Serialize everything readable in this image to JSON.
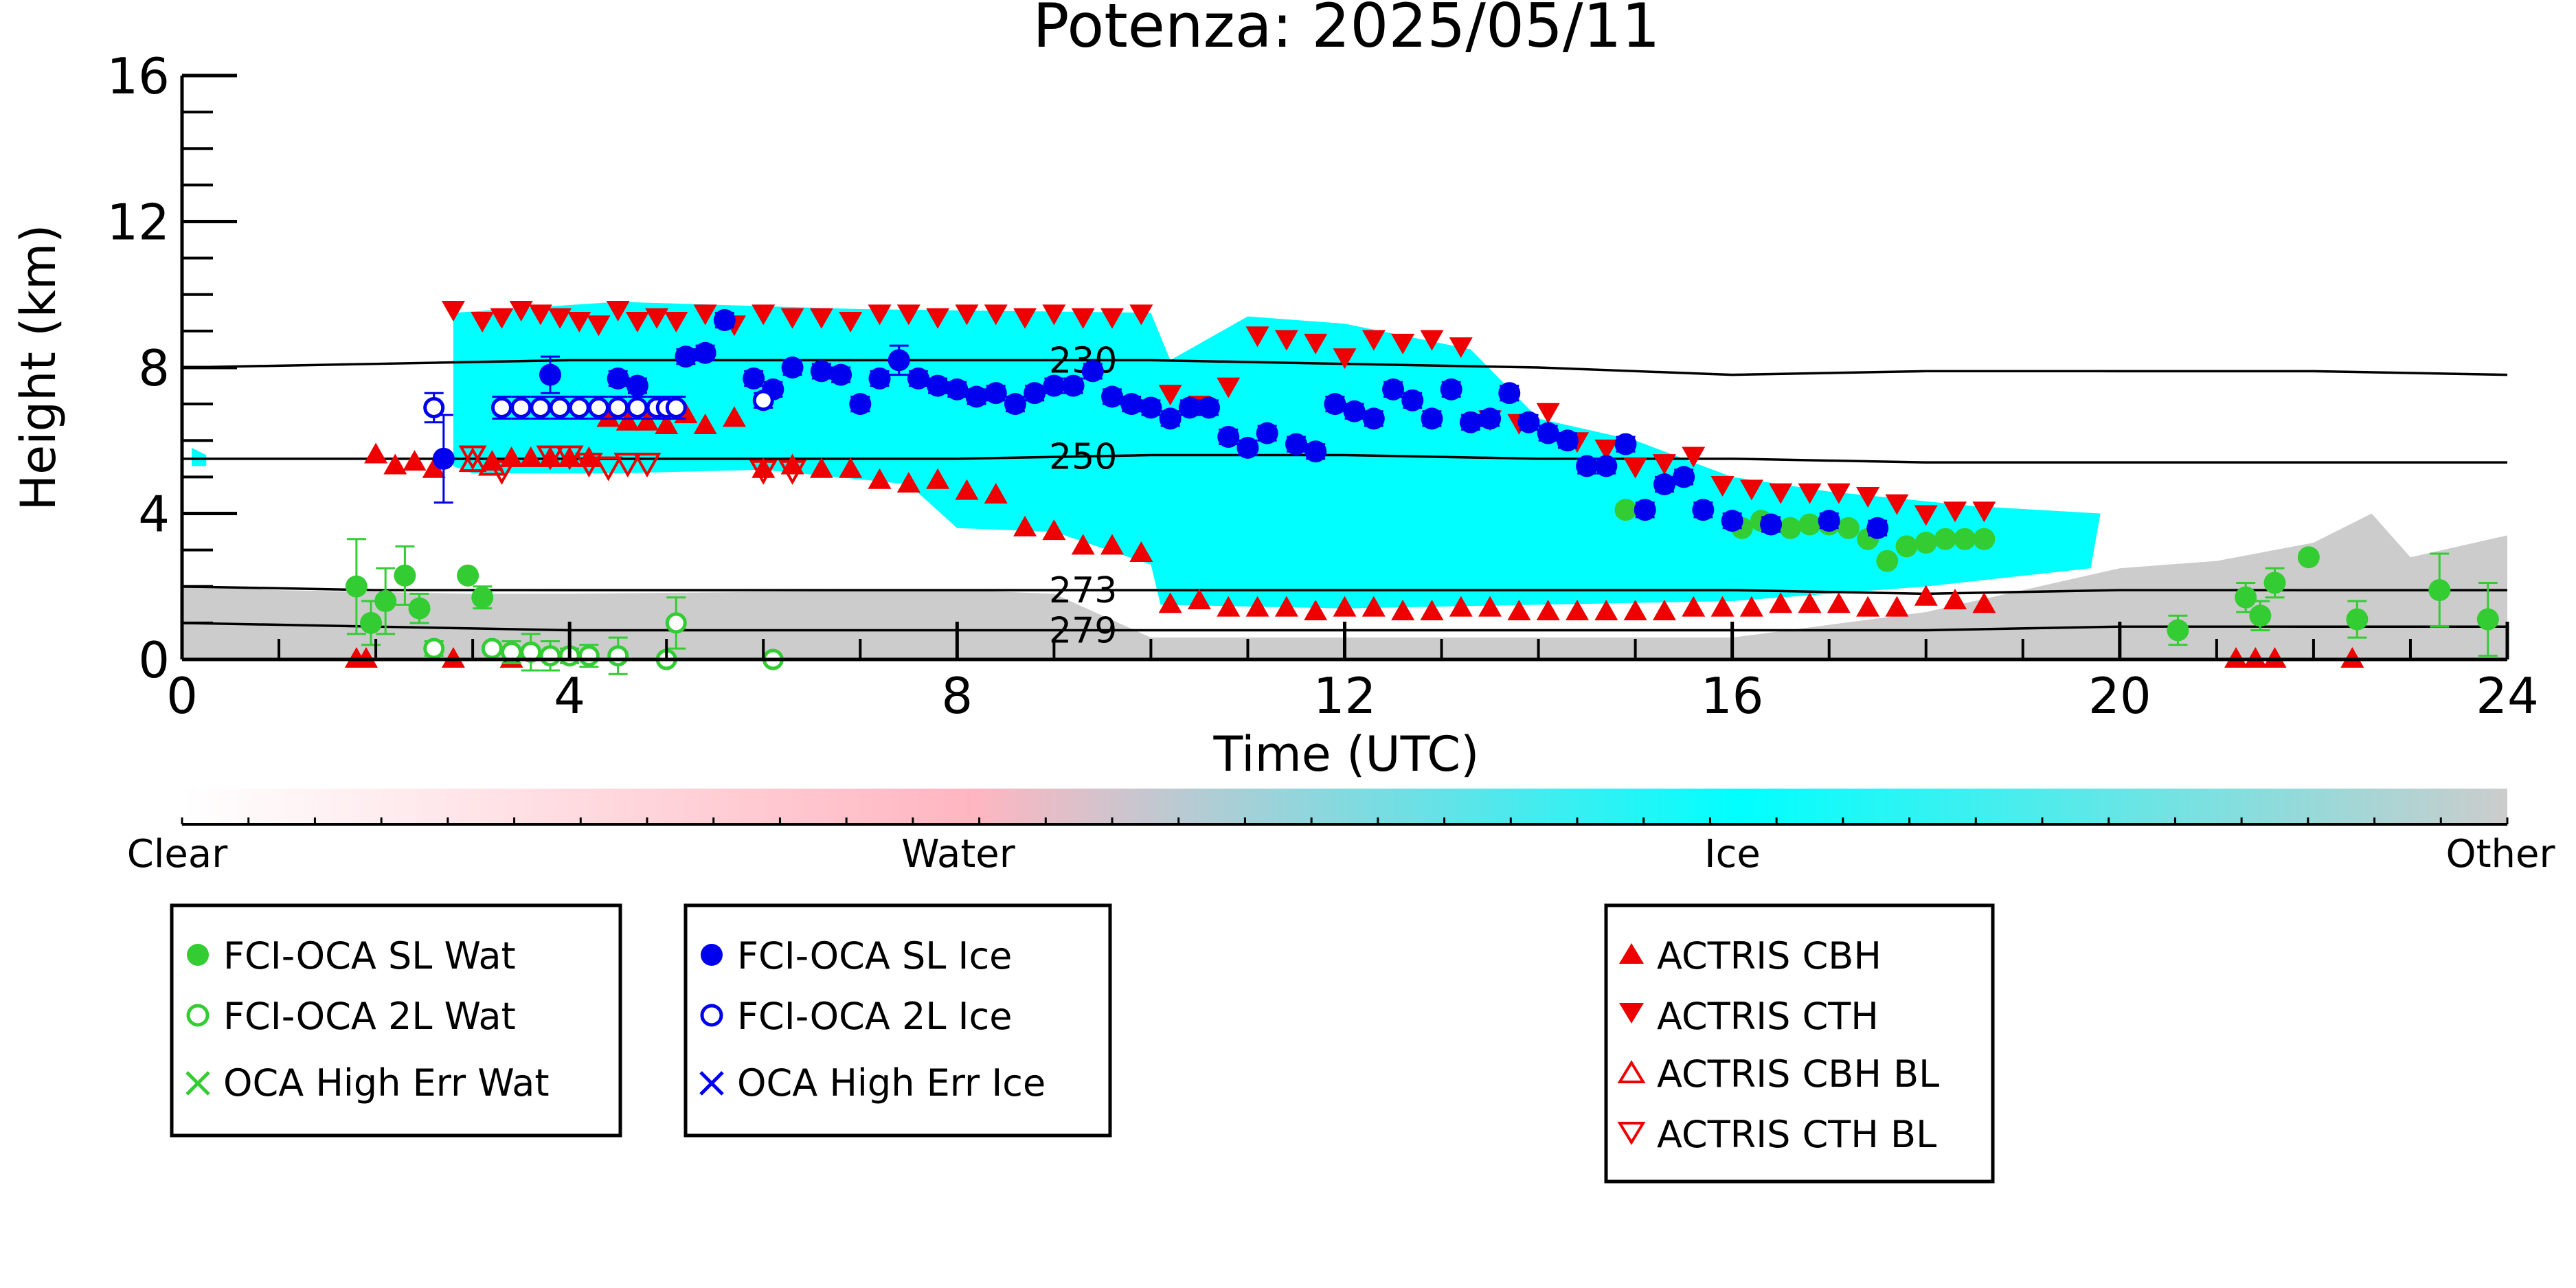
{
  "chart_data": {
    "type": "scatter",
    "title": "Potenza: 2025/05/11",
    "xlabel": "Time (UTC)",
    "ylabel": "Height (km)",
    "xlim": [
      0,
      24
    ],
    "ylim": [
      0,
      16
    ],
    "xticks": [
      0,
      4,
      8,
      12,
      16,
      20,
      24
    ],
    "yticks": [
      0,
      4,
      8,
      12,
      16
    ],
    "grid": false,
    "colors": {
      "fci_wat": "#33cc33",
      "fci_ice": "#0000ee",
      "actris": "#ee0000",
      "ice_fill": "#00ffff",
      "other_fill": "#cccccc",
      "contour": "#000000"
    },
    "colorbar": {
      "labels": [
        "Clear",
        "Water",
        "Ice",
        "Other"
      ],
      "stops": [
        "#ffffff",
        "#ffb6c1",
        "#00ffff",
        "#cccccc"
      ]
    },
    "contours": [
      {
        "label": "230",
        "label_x": 9.3,
        "points": [
          [
            0,
            8.0
          ],
          [
            2,
            8.1
          ],
          [
            4,
            8.2
          ],
          [
            6,
            8.2
          ],
          [
            8,
            8.2
          ],
          [
            10,
            8.2
          ],
          [
            12,
            8.1
          ],
          [
            14,
            8.0
          ],
          [
            15,
            7.9
          ],
          [
            16,
            7.8
          ],
          [
            18,
            7.9
          ],
          [
            20,
            7.9
          ],
          [
            22,
            7.9
          ],
          [
            24,
            7.8
          ]
        ]
      },
      {
        "label": "250",
        "label_x": 9.3,
        "points": [
          [
            0,
            5.5
          ],
          [
            2,
            5.5
          ],
          [
            4,
            5.5
          ],
          [
            6,
            5.5
          ],
          [
            8,
            5.5
          ],
          [
            10,
            5.6
          ],
          [
            12,
            5.6
          ],
          [
            14,
            5.5
          ],
          [
            16,
            5.5
          ],
          [
            18,
            5.4
          ],
          [
            20,
            5.4
          ],
          [
            22,
            5.4
          ],
          [
            24,
            5.4
          ]
        ]
      },
      {
        "label": "273",
        "label_x": 9.3,
        "points": [
          [
            0,
            2.0
          ],
          [
            2,
            1.9
          ],
          [
            4,
            1.9
          ],
          [
            6,
            1.9
          ],
          [
            8,
            1.9
          ],
          [
            10,
            1.9
          ],
          [
            12,
            1.9
          ],
          [
            14,
            1.9
          ],
          [
            16,
            1.9
          ],
          [
            18,
            1.8
          ],
          [
            20,
            1.9
          ],
          [
            22,
            1.9
          ],
          [
            24,
            1.9
          ]
        ]
      },
      {
        "label": "279",
        "label_x": 9.3,
        "points": [
          [
            0,
            1.0
          ],
          [
            2,
            0.9
          ],
          [
            4,
            0.8
          ],
          [
            6,
            0.8
          ],
          [
            8,
            0.8
          ],
          [
            10,
            0.8
          ],
          [
            12,
            0.8
          ],
          [
            14,
            0.8
          ],
          [
            16,
            0.8
          ],
          [
            18,
            0.8
          ],
          [
            20,
            0.9
          ],
          [
            22,
            0.9
          ],
          [
            24,
            0.9
          ]
        ]
      }
    ],
    "ice_region": [
      [
        0.1,
        5.8
      ],
      [
        0.25,
        5.6
      ],
      [
        0.25,
        5.3
      ],
      [
        0.1,
        5.3
      ],
      [
        0.1,
        5.8
      ]
    ],
    "ice_region_main": [
      [
        2.8,
        5.3
      ],
      [
        2.8,
        9.5
      ],
      [
        4.5,
        9.8
      ],
      [
        7,
        9.6
      ],
      [
        10,
        9.5
      ],
      [
        10.2,
        8.2
      ],
      [
        11,
        9.4
      ],
      [
        12,
        9.2
      ],
      [
        13.3,
        8.5
      ],
      [
        14,
        6.6
      ],
      [
        15,
        6.0
      ],
      [
        16,
        5.0
      ],
      [
        17,
        4.6
      ],
      [
        18.5,
        4.2
      ],
      [
        19.8,
        4.0
      ],
      [
        19.7,
        2.5
      ],
      [
        18,
        2.0
      ],
      [
        16,
        1.6
      ],
      [
        12,
        1.4
      ],
      [
        10.1,
        1.5
      ],
      [
        10,
        2.6
      ],
      [
        9,
        3.5
      ],
      [
        8,
        3.6
      ],
      [
        7.5,
        4.8
      ],
      [
        6,
        5.2
      ],
      [
        4.5,
        5.1
      ],
      [
        3,
        5.1
      ]
    ],
    "other_region": [
      [
        0,
        0
      ],
      [
        0,
        2.0
      ],
      [
        1,
        1.9
      ],
      [
        3,
        1.8
      ],
      [
        4,
        1.8
      ],
      [
        8,
        1.9
      ],
      [
        9,
        1.8
      ],
      [
        10,
        0.6
      ],
      [
        16,
        0.6
      ],
      [
        18,
        1.3
      ],
      [
        20,
        2.5
      ],
      [
        21,
        2.7
      ],
      [
        22,
        3.2
      ],
      [
        22.6,
        4.0
      ],
      [
        23,
        2.8
      ],
      [
        24,
        3.4
      ],
      [
        24,
        0
      ]
    ],
    "legend_wat": [
      "FCI-OCA SL Wat",
      "FCI-OCA 2L Wat",
      "OCA High Err Wat"
    ],
    "legend_ice": [
      "FCI-OCA SL Ice",
      "FCI-OCA 2L Ice",
      "OCA High Err Ice"
    ],
    "legend_actris": [
      "ACTRIS CBH",
      "ACTRIS CTH",
      "ACTRIS CBH BL",
      "ACTRIS CTH BL"
    ],
    "series": [
      {
        "name": "FCI-OCA SL Wat",
        "x": [
          1.8,
          1.95,
          2.1,
          2.3,
          2.45,
          2.95,
          3.1,
          14.9,
          16.1,
          16.3,
          16.6,
          16.8,
          17.0,
          17.2,
          17.4,
          17.6,
          17.8,
          18.0,
          18.2,
          18.4,
          18.6,
          20.6,
          21.3,
          21.45,
          21.6,
          21.95,
          22.45,
          23.3,
          23.8
        ],
        "y": [
          2.0,
          1.0,
          1.6,
          2.3,
          1.4,
          2.3,
          1.7,
          4.1,
          3.6,
          3.8,
          3.6,
          3.7,
          3.7,
          3.6,
          3.3,
          2.7,
          3.1,
          3.2,
          3.3,
          3.3,
          3.3,
          0.8,
          1.7,
          1.2,
          2.1,
          2.8,
          1.1,
          1.9,
          1.1
        ],
        "err": [
          1.3,
          0.6,
          0.9,
          0.8,
          0.4,
          0,
          0.3,
          0.15,
          0.1,
          0.1,
          0.1,
          0.1,
          0.1,
          0.1,
          0.1,
          0.1,
          0.1,
          0.1,
          0.1,
          0.1,
          0.1,
          0.4,
          0.4,
          0.4,
          0.4,
          0,
          0.5,
          1.0,
          1.0
        ]
      },
      {
        "name": "FCI-OCA 2L Wat",
        "x": [
          2.6,
          3.2,
          3.4,
          3.6,
          3.8,
          4.0,
          4.2,
          4.5,
          5.0,
          5.1,
          6.1
        ],
        "y": [
          0.3,
          0.3,
          0.2,
          0.2,
          0.1,
          0.1,
          0.1,
          0.1,
          0.0,
          1.0,
          0.0
        ],
        "err": [
          0.2,
          0.1,
          0.3,
          0.5,
          0.4,
          0.2,
          0.3,
          0.5,
          0.1,
          0.7,
          0.1
        ]
      },
      {
        "name": "FCI-OCA SL Ice",
        "x": [
          2.7,
          3.8,
          4.5,
          4.7,
          5.2,
          5.4,
          5.6,
          5.9,
          6.1,
          6.3,
          6.6,
          6.8,
          7.0,
          7.2,
          7.4,
          7.6,
          7.8,
          8.0,
          8.2,
          8.4,
          8.6,
          8.8,
          9.0,
          9.2,
          9.4,
          9.6,
          9.8,
          10.0,
          10.2,
          10.4,
          10.6,
          10.8,
          11.0,
          11.2,
          11.5,
          11.7,
          11.9,
          12.1,
          12.3,
          12.5,
          12.7,
          12.9,
          13.1,
          13.3,
          13.5,
          13.7,
          13.9,
          14.1,
          14.3,
          14.5,
          14.7,
          14.9,
          15.1,
          15.3,
          15.5,
          15.7,
          16.0,
          16.4,
          17.0,
          17.5
        ],
        "y": [
          5.5,
          7.8,
          7.7,
          7.5,
          8.3,
          8.4,
          9.3,
          7.7,
          7.4,
          8.0,
          7.9,
          7.8,
          7.0,
          7.7,
          8.2,
          7.7,
          7.5,
          7.4,
          7.2,
          7.3,
          7.0,
          7.3,
          7.5,
          7.5,
          7.9,
          7.2,
          7.0,
          6.9,
          6.6,
          6.9,
          6.9,
          6.1,
          5.8,
          6.2,
          5.9,
          5.7,
          7.0,
          6.8,
          6.6,
          7.4,
          7.1,
          6.6,
          7.4,
          6.5,
          6.6,
          7.3,
          6.5,
          6.2,
          6.0,
          5.3,
          5.3,
          5.9,
          4.1,
          4.8,
          5.0,
          4.1,
          3.8,
          3.7,
          3.8,
          3.6
        ],
        "err": [
          1.2,
          0.5,
          0.2,
          0.2,
          0.2,
          0.2,
          0.2,
          0.2,
          0.2,
          0.2,
          0.2,
          0.2,
          0.2,
          0.2,
          0.4,
          0.2,
          0.2,
          0.2,
          0.2,
          0.2,
          0.2,
          0.2,
          0.2,
          0.2,
          0.2,
          0.2,
          0.2,
          0.2,
          0.2,
          0.2,
          0.2,
          0.2,
          0.2,
          0.2,
          0.2,
          0.2,
          0.2,
          0.2,
          0.2,
          0.2,
          0.2,
          0.2,
          0.2,
          0.2,
          0.2,
          0.2,
          0.2,
          0.2,
          0.2,
          0.2,
          0.2,
          0.2,
          0.2,
          0.2,
          0.2,
          0.2,
          0.2,
          0.2,
          0.2,
          0.2
        ]
      },
      {
        "name": "FCI-OCA 2L Ice",
        "x": [
          2.6,
          3.3,
          3.5,
          3.7,
          3.9,
          4.1,
          4.3,
          4.5,
          4.7,
          4.9,
          5.0,
          5.1,
          6.0
        ],
        "y": [
          6.9,
          6.9,
          6.9,
          6.9,
          6.9,
          6.9,
          6.9,
          6.9,
          6.9,
          6.9,
          6.9,
          6.9,
          7.1
        ],
        "err": [
          0.4,
          0.3,
          0.3,
          0.3,
          0.3,
          0.3,
          0.3,
          0.3,
          0.3,
          0.3,
          0.3,
          0.3,
          0.2
        ]
      },
      {
        "name": "ACTRIS CBH",
        "x": [
          2.0,
          2.2,
          2.4,
          2.6,
          3.2,
          3.4,
          3.6,
          3.8,
          4.0,
          4.2,
          4.4,
          4.6,
          4.8,
          5.0,
          5.2,
          5.4,
          5.7,
          6.0,
          6.3,
          6.6,
          6.9,
          7.2,
          7.5,
          7.8,
          8.1,
          8.4,
          8.7,
          9.0,
          9.3,
          9.6,
          9.9,
          10.2,
          10.5,
          10.8,
          11.1,
          11.4,
          11.7,
          12.0,
          12.3,
          12.6,
          12.9,
          13.2,
          13.5,
          13.8,
          14.1,
          14.4,
          14.7,
          15.0,
          15.3,
          15.6,
          15.9,
          16.2,
          16.5,
          16.8,
          17.1,
          17.4,
          17.7,
          18.0,
          18.3,
          18.6,
          1.8,
          1.9,
          2.8,
          3.4,
          21.2,
          21.4,
          21.6,
          22.4
        ],
        "y": [
          5.6,
          5.3,
          5.4,
          5.2,
          5.4,
          5.5,
          5.5,
          5.5,
          5.5,
          5.5,
          6.6,
          6.5,
          6.5,
          6.4,
          6.7,
          6.4,
          6.6,
          5.2,
          5.3,
          5.2,
          5.2,
          4.9,
          4.8,
          4.9,
          4.6,
          4.5,
          3.6,
          3.5,
          3.1,
          3.1,
          2.9,
          1.5,
          1.6,
          1.4,
          1.4,
          1.4,
          1.3,
          1.4,
          1.4,
          1.3,
          1.3,
          1.4,
          1.4,
          1.3,
          1.3,
          1.3,
          1.3,
          1.3,
          1.3,
          1.4,
          1.4,
          1.4,
          1.5,
          1.5,
          1.5,
          1.4,
          1.4,
          1.7,
          1.6,
          1.5,
          0.0,
          0.0,
          0.0,
          0.0,
          0.0,
          0.0,
          0.0,
          0.0
        ]
      },
      {
        "name": "ACTRIS CTH",
        "x": [
          2.8,
          3.1,
          3.3,
          3.5,
          3.7,
          3.9,
          4.1,
          4.3,
          4.5,
          4.7,
          4.9,
          5.1,
          5.4,
          5.7,
          6.0,
          6.3,
          6.6,
          6.9,
          7.2,
          7.5,
          7.8,
          8.1,
          8.4,
          8.7,
          9.0,
          9.3,
          9.6,
          9.9,
          10.2,
          10.5,
          10.8,
          11.1,
          11.4,
          11.7,
          12.0,
          12.3,
          12.6,
          12.9,
          13.2,
          13.5,
          13.8,
          14.1,
          14.4,
          14.7,
          15.0,
          15.3,
          15.6,
          15.9,
          16.2,
          16.5,
          16.8,
          17.1,
          17.4,
          17.7,
          18.0,
          18.3,
          18.6
        ],
        "y": [
          9.6,
          9.3,
          9.4,
          9.6,
          9.5,
          9.4,
          9.3,
          9.2,
          9.6,
          9.3,
          9.4,
          9.3,
          9.5,
          9.2,
          9.5,
          9.4,
          9.4,
          9.3,
          9.5,
          9.5,
          9.4,
          9.5,
          9.5,
          9.4,
          9.5,
          9.4,
          9.4,
          9.5,
          7.3,
          7.0,
          7.5,
          8.9,
          8.8,
          8.7,
          8.3,
          8.8,
          8.7,
          8.8,
          8.6,
          6.6,
          6.5,
          6.8,
          6.0,
          5.8,
          5.3,
          5.4,
          5.6,
          4.8,
          4.7,
          4.6,
          4.6,
          4.6,
          4.5,
          4.3,
          4.0,
          4.1,
          4.1
        ]
      },
      {
        "name": "ACTRIS CBH BL",
        "x": [
          3.0,
          3.2
        ],
        "y": [
          5.4,
          5.3
        ]
      },
      {
        "name": "ACTRIS CTH BL",
        "x": [
          3.0,
          3.3,
          3.8,
          4.0,
          4.2,
          4.4,
          4.6,
          4.8,
          6.0,
          6.3
        ],
        "y": [
          5.6,
          5.2,
          5.6,
          5.6,
          5.4,
          5.3,
          5.4,
          5.4,
          5.2,
          5.2
        ]
      }
    ]
  }
}
